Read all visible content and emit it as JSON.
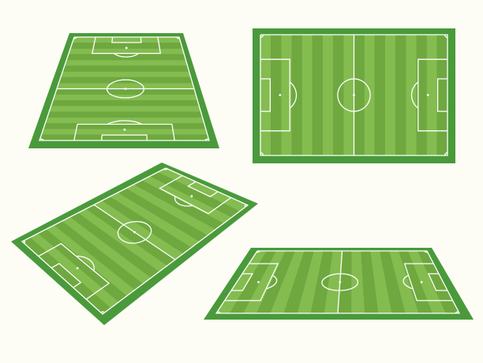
{
  "pitches": [
    {
      "name": "perspective-portrait-pitch"
    },
    {
      "name": "top-down-pitch"
    },
    {
      "name": "isometric-pitch"
    },
    {
      "name": "perspective-landscape-pitch"
    }
  ],
  "colors": {
    "background": "#fdfdf5",
    "border": "#4a9a3b",
    "stripe_light": "#84bc50",
    "stripe_dark": "#6ea83f",
    "lines": "#ffffff"
  },
  "stripes_per_pitch": 18
}
